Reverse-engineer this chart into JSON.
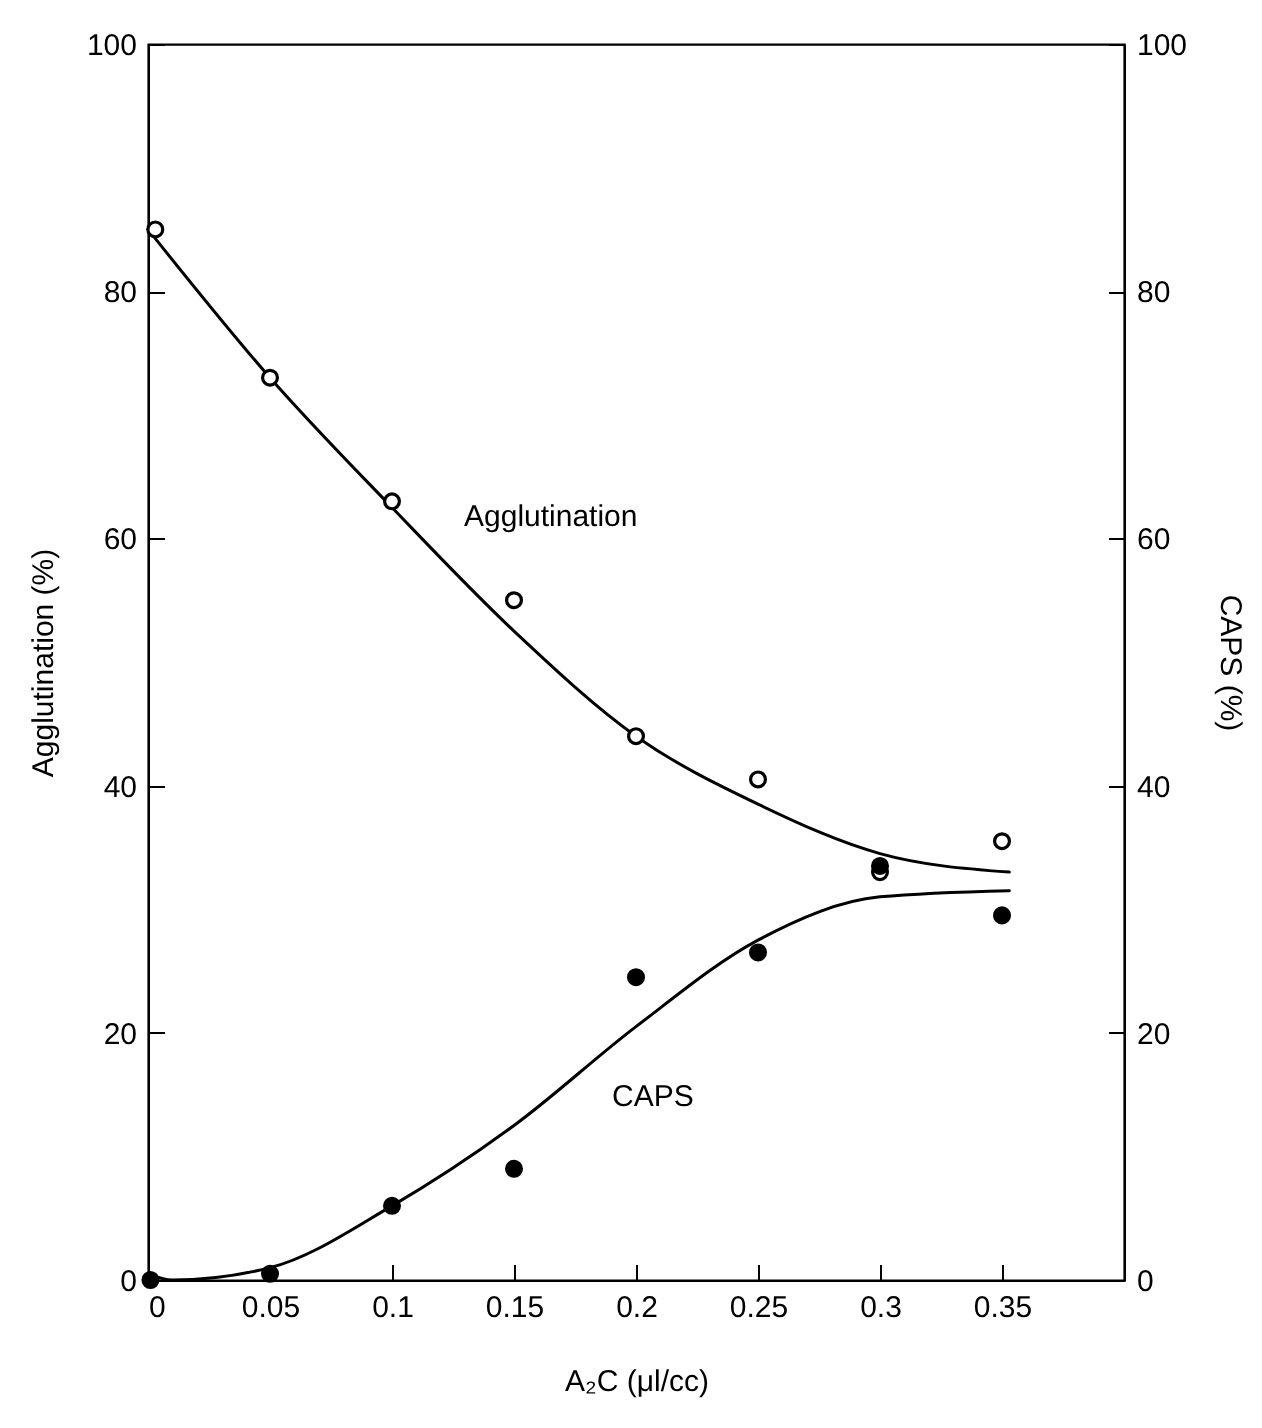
{
  "chart_data": {
    "type": "scatter",
    "xlabel": "A₂C (μl/cc)",
    "ylabel": "Agglutination (%)",
    "y2label": "CAPS (%)",
    "xlim": [
      0,
      0.4
    ],
    "xticks": [
      0,
      0.05,
      0.1,
      0.15,
      0.2,
      0.25,
      0.3,
      0.35
    ],
    "ylim": [
      0,
      100
    ],
    "yticks": [
      0,
      20,
      40,
      60,
      80,
      100
    ],
    "y2lim": [
      0,
      100
    ],
    "y2ticks": [
      0,
      20,
      40,
      60,
      80,
      100
    ],
    "grid": false,
    "series": [
      {
        "type": "line",
        "color": "#000000",
        "x": [
          0,
          0.05,
          0.1,
          0.15,
          0.2,
          0.25,
          0.3,
          0.353
        ],
        "values": [
          85,
          73,
          62.5,
          52.5,
          44,
          38.5,
          34.5,
          33
        ]
      },
      {
        "marker": "circle",
        "color": "#ffffff",
        "x": [
          0.003,
          0.05,
          0.1,
          0.15,
          0.2,
          0.25,
          0.3,
          0.35
        ],
        "values": [
          85,
          73,
          63,
          55,
          44,
          40.5,
          33,
          35.5
        ]
      },
      {
        "type": "line",
        "axis": "y2",
        "color": "#000000",
        "x": [
          0,
          0.01,
          0.05,
          0.1,
          0.15,
          0.2,
          0.25,
          0.3,
          0.353
        ],
        "values": [
          0.5,
          0,
          1,
          6,
          12.5,
          20.5,
          27.5,
          31,
          31.5
        ]
      },
      {
        "axis": "y2",
        "marker": "circle",
        "color": "#000000",
        "x": [
          0.001,
          0.05,
          0.1,
          0.15,
          0.2,
          0.25,
          0.3,
          0.35
        ],
        "values": [
          0,
          0.5,
          6,
          9,
          24.5,
          26.5,
          33.5,
          29.5
        ]
      }
    ],
    "annotations": [
      "Agglutination",
      "CAPS"
    ]
  }
}
